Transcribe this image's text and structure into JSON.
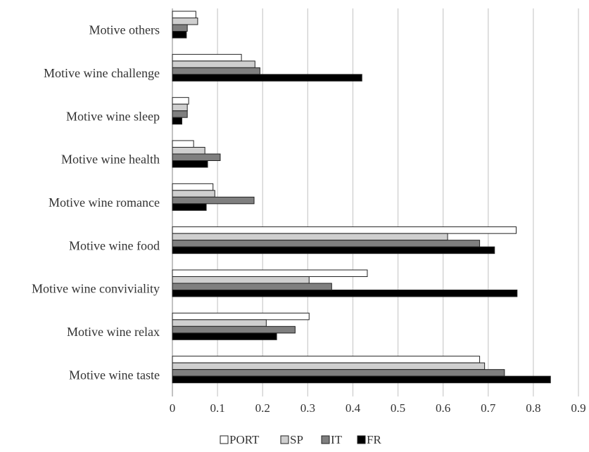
{
  "chart_data": {
    "type": "bar",
    "orientation": "horizontal",
    "categories": [
      "Motive others",
      "Motive wine challenge",
      "Motive wine sleep",
      "Motive wine health",
      "Motive wine romance",
      "Motive wine food",
      "Motive wine conviviality",
      "Motive wine relax",
      "Motive wine taste"
    ],
    "series": [
      {
        "name": "PORT",
        "color": "#ffffff",
        "values": [
          0.052,
          0.153,
          0.036,
          0.047,
          0.09,
          0.762,
          0.432,
          0.303,
          0.681
        ]
      },
      {
        "name": "SP",
        "color": "#cfcfcf",
        "values": [
          0.056,
          0.183,
          0.033,
          0.072,
          0.094,
          0.61,
          0.303,
          0.208,
          0.692
        ]
      },
      {
        "name": "IT",
        "color": "#7f7f7f",
        "values": [
          0.033,
          0.194,
          0.033,
          0.106,
          0.181,
          0.681,
          0.353,
          0.272,
          0.736
        ]
      },
      {
        "name": "FR",
        "color": "#000000",
        "values": [
          0.031,
          0.42,
          0.021,
          0.078,
          0.075,
          0.714,
          0.764,
          0.231,
          0.838
        ]
      }
    ],
    "xlim": [
      0,
      0.9
    ],
    "xticks": [
      "0",
      "0.1",
      "0.2",
      "0.3",
      "0.4",
      "0.5",
      "0.6",
      "0.7",
      "0.8",
      "0.9"
    ],
    "grid": true,
    "legend_position": "bottom"
  }
}
